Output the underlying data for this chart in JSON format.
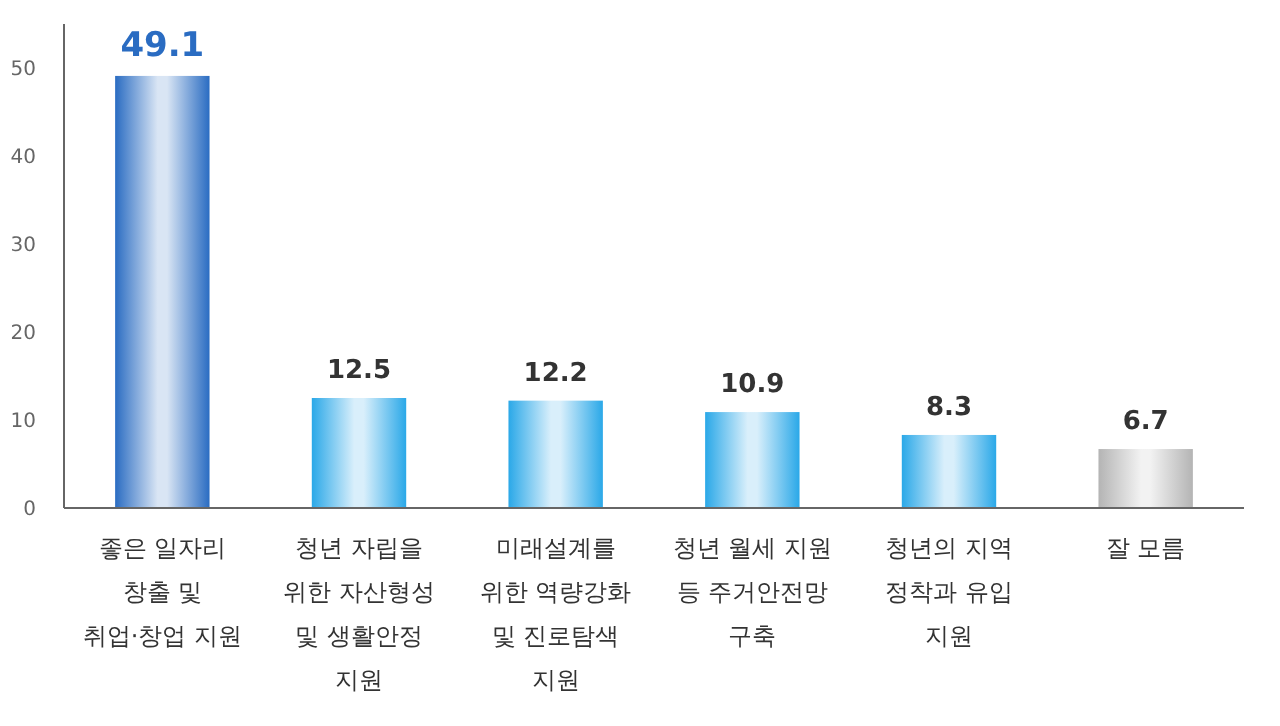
{
  "chart_data": {
    "type": "bar",
    "categories": [
      "좋은 일자리 창출 및 취업·창업 지원",
      "청년 자립을 위한 자산형성 및 생활안정 지원",
      "미래설계를 위한 역량강화 및 진로탐색 지원",
      "청년 월세 지원 등 주거안전망 구축",
      "청년의 지역 정착과 유입 지원",
      "잘 모름"
    ],
    "values": [
      49.1,
      12.5,
      12.2,
      10.9,
      8.3,
      6.7
    ],
    "colors": [
      "#2a6cc2",
      "#2aa8e8",
      "#2aa8e8",
      "#2aa8e8",
      "#2aa8e8",
      "#b4b4b4"
    ],
    "ylim": [
      0,
      55
    ],
    "yticks": [
      0,
      10,
      20,
      30,
      40,
      50
    ],
    "grid": false,
    "data_labels": true
  }
}
